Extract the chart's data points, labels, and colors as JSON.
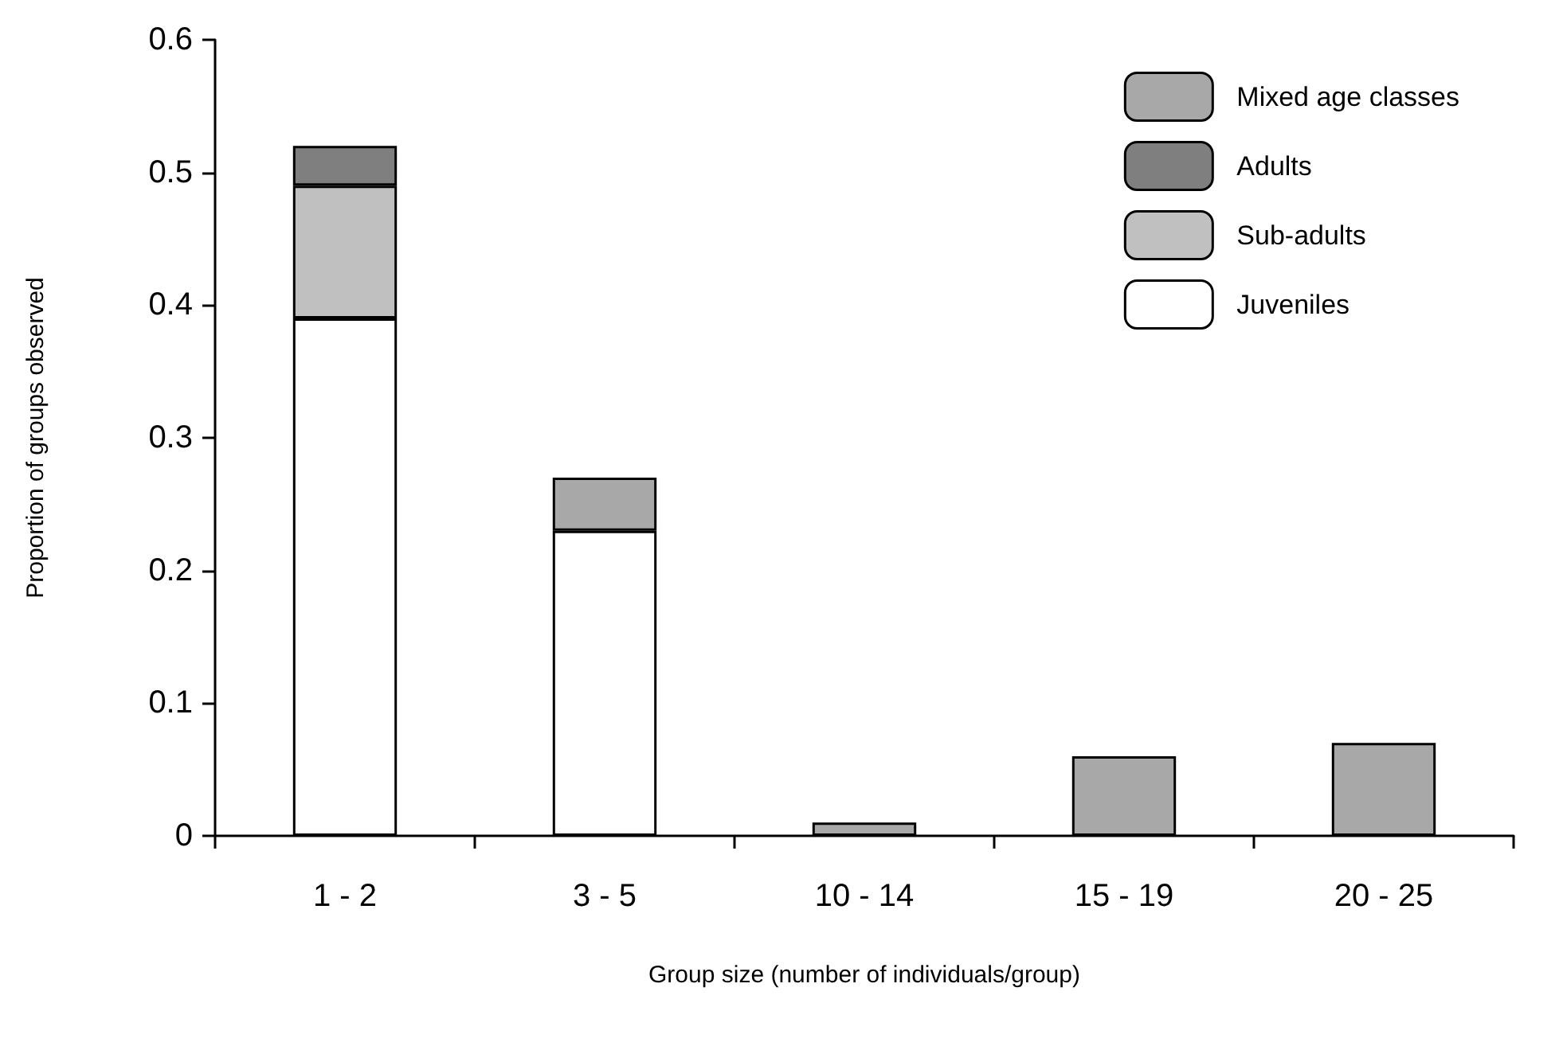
{
  "chart_data": {
    "type": "bar",
    "stacked": true,
    "xlabel": "Group size (number of individuals/group)",
    "ylabel": "Proportion of groups observed",
    "categories": [
      "1 - 2",
      "3 - 5",
      "10 - 14",
      "15 - 19",
      "20 - 25"
    ],
    "series": [
      {
        "name": "Juveniles",
        "color": "#ffffff",
        "values": [
          0.39,
          0.23,
          null,
          null,
          null
        ]
      },
      {
        "name": "Sub-adults",
        "color": "#c0c0c0",
        "values": [
          0.1,
          null,
          null,
          null,
          null
        ]
      },
      {
        "name": "Adults",
        "color": "#7f7f7f",
        "values": [
          0.03,
          null,
          null,
          null,
          null
        ]
      },
      {
        "name": "Mixed age classes",
        "color": "#a8a8a8",
        "values": [
          null,
          0.04,
          0.01,
          0.06,
          0.07
        ]
      }
    ],
    "ylim": [
      0,
      0.6
    ],
    "yticks": [
      {
        "value": 0,
        "label": "0"
      },
      0.1,
      0.2,
      0.3,
      0.4,
      0.5,
      0.6
    ],
    "grid": false,
    "legend": "top right"
  }
}
